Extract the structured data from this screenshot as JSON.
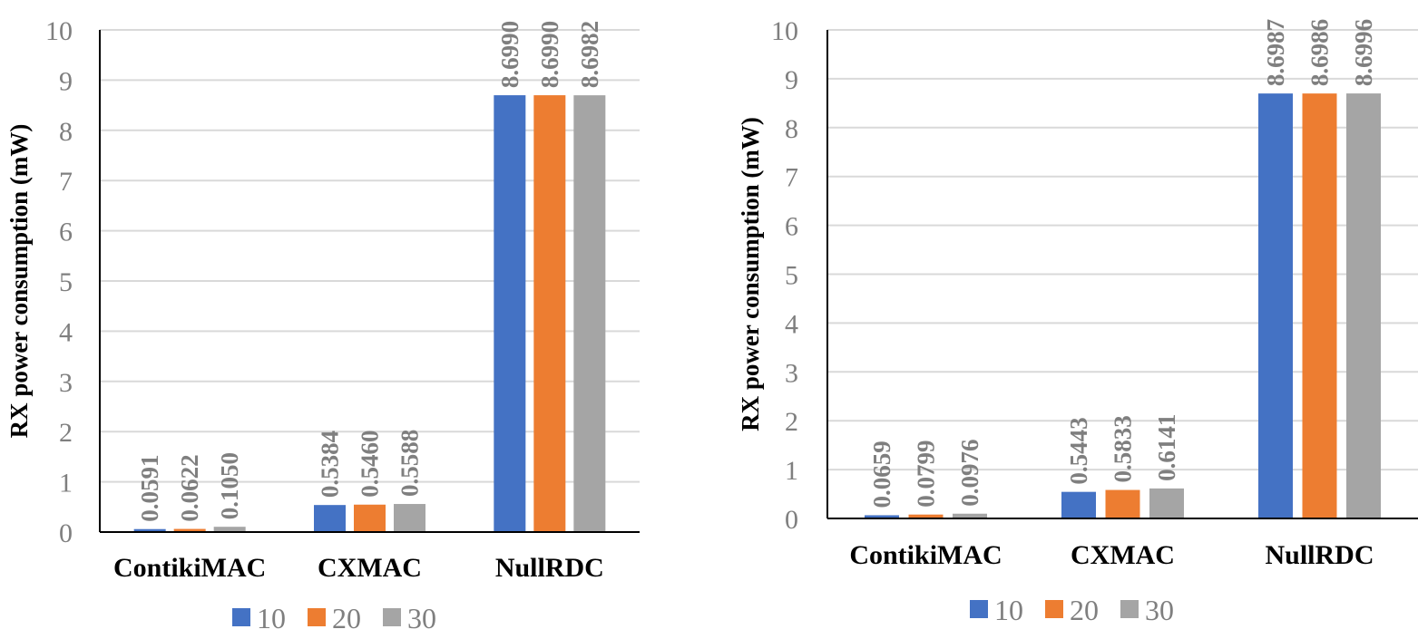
{
  "chart_data": [
    {
      "type": "bar",
      "title": "",
      "xlabel": "",
      "ylabel": "RX power consumption (mW)",
      "ylim": [
        0,
        10
      ],
      "yticks": [
        "0",
        "1",
        "2",
        "3",
        "4",
        "5",
        "6",
        "7",
        "8",
        "9",
        "10"
      ],
      "categories": [
        "ContikiMAC",
        "CXMAC",
        "NullRDC"
      ],
      "series": [
        {
          "name": "10",
          "color": "#4472c4",
          "values": [
            0.0591,
            0.5384,
            8.699
          ],
          "labels": [
            "0.0591",
            "0.5384",
            "8.6990"
          ]
        },
        {
          "name": "20",
          "color": "#ed7d31",
          "values": [
            0.0622,
            0.546,
            8.699
          ],
          "labels": [
            "0.0622",
            "0.5460",
            "8.6990"
          ]
        },
        {
          "name": "30",
          "color": "#a5a5a5",
          "values": [
            0.105,
            0.5588,
            8.6982
          ],
          "labels": [
            "0.1050",
            "0.5588",
            "8.6982"
          ]
        }
      ],
      "legend_position": "bottom",
      "grid": true
    },
    {
      "type": "bar",
      "title": "",
      "xlabel": "",
      "ylabel": "RX power consumption (mW)",
      "ylim": [
        0,
        10
      ],
      "yticks": [
        "0",
        "1",
        "2",
        "3",
        "4",
        "5",
        "6",
        "7",
        "8",
        "9",
        "10"
      ],
      "categories": [
        "ContikiMAC",
        "CXMAC",
        "NullRDC"
      ],
      "series": [
        {
          "name": "10",
          "color": "#4472c4",
          "values": [
            0.0659,
            0.5443,
            8.6987
          ],
          "labels": [
            "0.0659",
            "0.5443",
            "8.6987"
          ]
        },
        {
          "name": "20",
          "color": "#ed7d31",
          "values": [
            0.0799,
            0.5833,
            8.6986
          ],
          "labels": [
            "0.0799",
            "0.5833",
            "8.6986"
          ]
        },
        {
          "name": "30",
          "color": "#a5a5a5",
          "values": [
            0.0976,
            0.6141,
            8.6996
          ],
          "labels": [
            "0.0976",
            "0.6141",
            "8.6996"
          ]
        }
      ],
      "legend_position": "bottom",
      "grid": true
    }
  ]
}
